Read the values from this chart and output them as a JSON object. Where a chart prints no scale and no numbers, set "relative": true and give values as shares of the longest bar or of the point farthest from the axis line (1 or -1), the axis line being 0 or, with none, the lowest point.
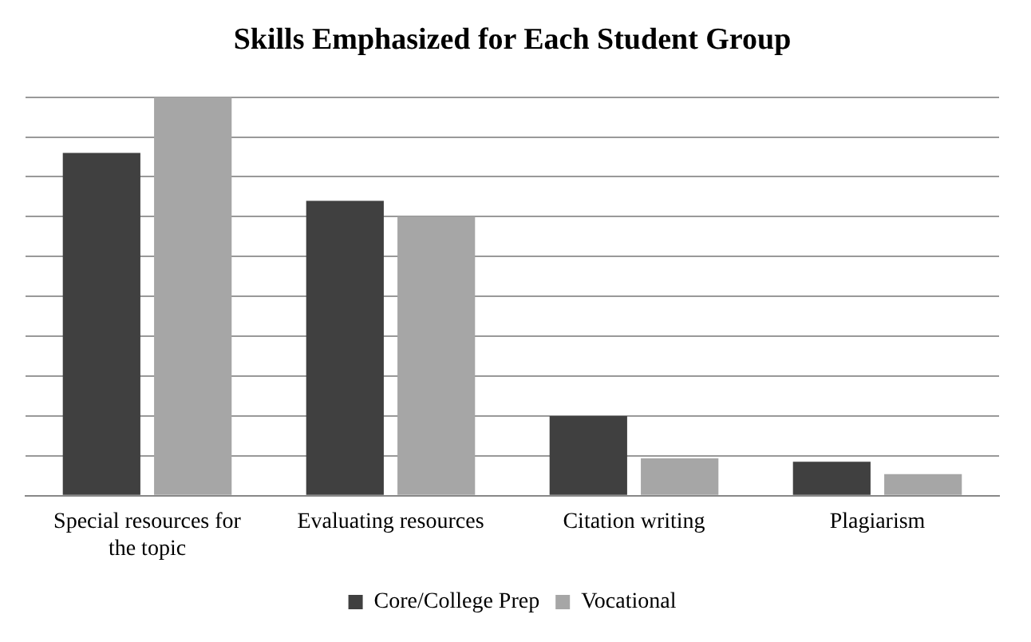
{
  "chart_data": {
    "type": "bar",
    "title": "Skills Emphasized for Each Student Group",
    "relative": true,
    "grid": "y",
    "legend": "bottom",
    "categories": [
      "Special resources for the topic",
      "Evaluating resources",
      "Citation writing",
      "Plagiarism"
    ],
    "series": [
      {
        "name": "Core/College Prep",
        "color": "#404040",
        "values": [
          0.86,
          0.74,
          0.2,
          0.085
        ]
      },
      {
        "name": "Vocational",
        "color": "#a6a6a6",
        "values": [
          1,
          0.7,
          0.094,
          0.054
        ]
      }
    ]
  }
}
